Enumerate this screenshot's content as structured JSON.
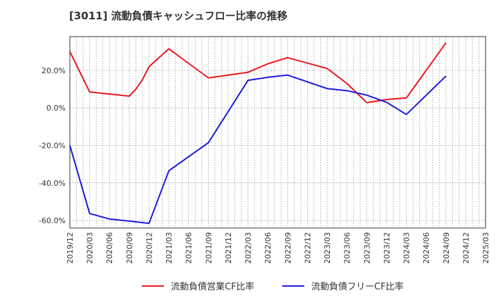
{
  "chart_data": {
    "type": "line",
    "title": "[3011]  流動負債キャッシュフロー比率の推移",
    "xlabel": "",
    "ylabel": "",
    "ylim": [
      -64,
      38
    ],
    "yticks": [
      20,
      0,
      -20,
      -40,
      -60
    ],
    "ytick_labels": [
      "20.0%",
      "0.0%",
      "-20.0%",
      "-40.0%",
      "-60.0%"
    ],
    "xlim": [
      "2019/12",
      "2025/03"
    ],
    "x_labels": [
      "2019/12",
      "2020/03",
      "2020/06",
      "2020/09",
      "2020/12",
      "2021/03",
      "2021/06",
      "2021/09",
      "2021/12",
      "2022/03",
      "2022/06",
      "2022/09",
      "2022/12",
      "2023/03",
      "2023/06",
      "2023/09",
      "2023/12",
      "2024/03",
      "2024/06",
      "2024/09",
      "2024/12",
      "2025/03"
    ],
    "grid": true,
    "legend_position": "bottom",
    "series": [
      {
        "name": "流動負債営業CF比率",
        "color": "#e8171f",
        "points": [
          {
            "x": "2019/12",
            "y": 30.0
          },
          {
            "x": "2020/03",
            "y": 8.5
          },
          {
            "x": "2020/09",
            "y": 6.3
          },
          {
            "x": "2020/10",
            "y": 10.0
          },
          {
            "x": "2020/11",
            "y": 15.0
          },
          {
            "x": "2020/12",
            "y": 22.0
          },
          {
            "x": "2021/03",
            "y": 31.5
          },
          {
            "x": "2021/09",
            "y": 16.0
          },
          {
            "x": "2022/03",
            "y": 19.0
          },
          {
            "x": "2022/06",
            "y": 23.5
          },
          {
            "x": "2022/09",
            "y": 26.8
          },
          {
            "x": "2023/03",
            "y": 21.0
          },
          {
            "x": "2023/06",
            "y": 13.0
          },
          {
            "x": "2023/09",
            "y": 2.8
          },
          {
            "x": "2023/12",
            "y": 4.5
          },
          {
            "x": "2024/03",
            "y": 5.3
          },
          {
            "x": "2024/09",
            "y": 34.7
          }
        ]
      },
      {
        "name": "流動負債フリーCF比率",
        "color": "#1a1adb",
        "points": [
          {
            "x": "2019/12",
            "y": -20.0
          },
          {
            "x": "2020/03",
            "y": -56.3
          },
          {
            "x": "2020/06",
            "y": -59.2
          },
          {
            "x": "2020/09",
            "y": -60.3
          },
          {
            "x": "2020/12",
            "y": -61.5
          },
          {
            "x": "2021/03",
            "y": -33.5
          },
          {
            "x": "2021/09",
            "y": -18.5
          },
          {
            "x": "2022/03",
            "y": 14.7
          },
          {
            "x": "2022/06",
            "y": 16.3
          },
          {
            "x": "2022/09",
            "y": 17.5
          },
          {
            "x": "2023/03",
            "y": 10.3
          },
          {
            "x": "2023/06",
            "y": 9.2
          },
          {
            "x": "2023/09",
            "y": 6.8
          },
          {
            "x": "2023/12",
            "y": 3.0
          },
          {
            "x": "2024/03",
            "y": -3.5
          },
          {
            "x": "2024/09",
            "y": 17.0
          }
        ]
      }
    ]
  },
  "colors": {
    "axis": "#333333",
    "grid": "#999999",
    "text": "#333333"
  }
}
